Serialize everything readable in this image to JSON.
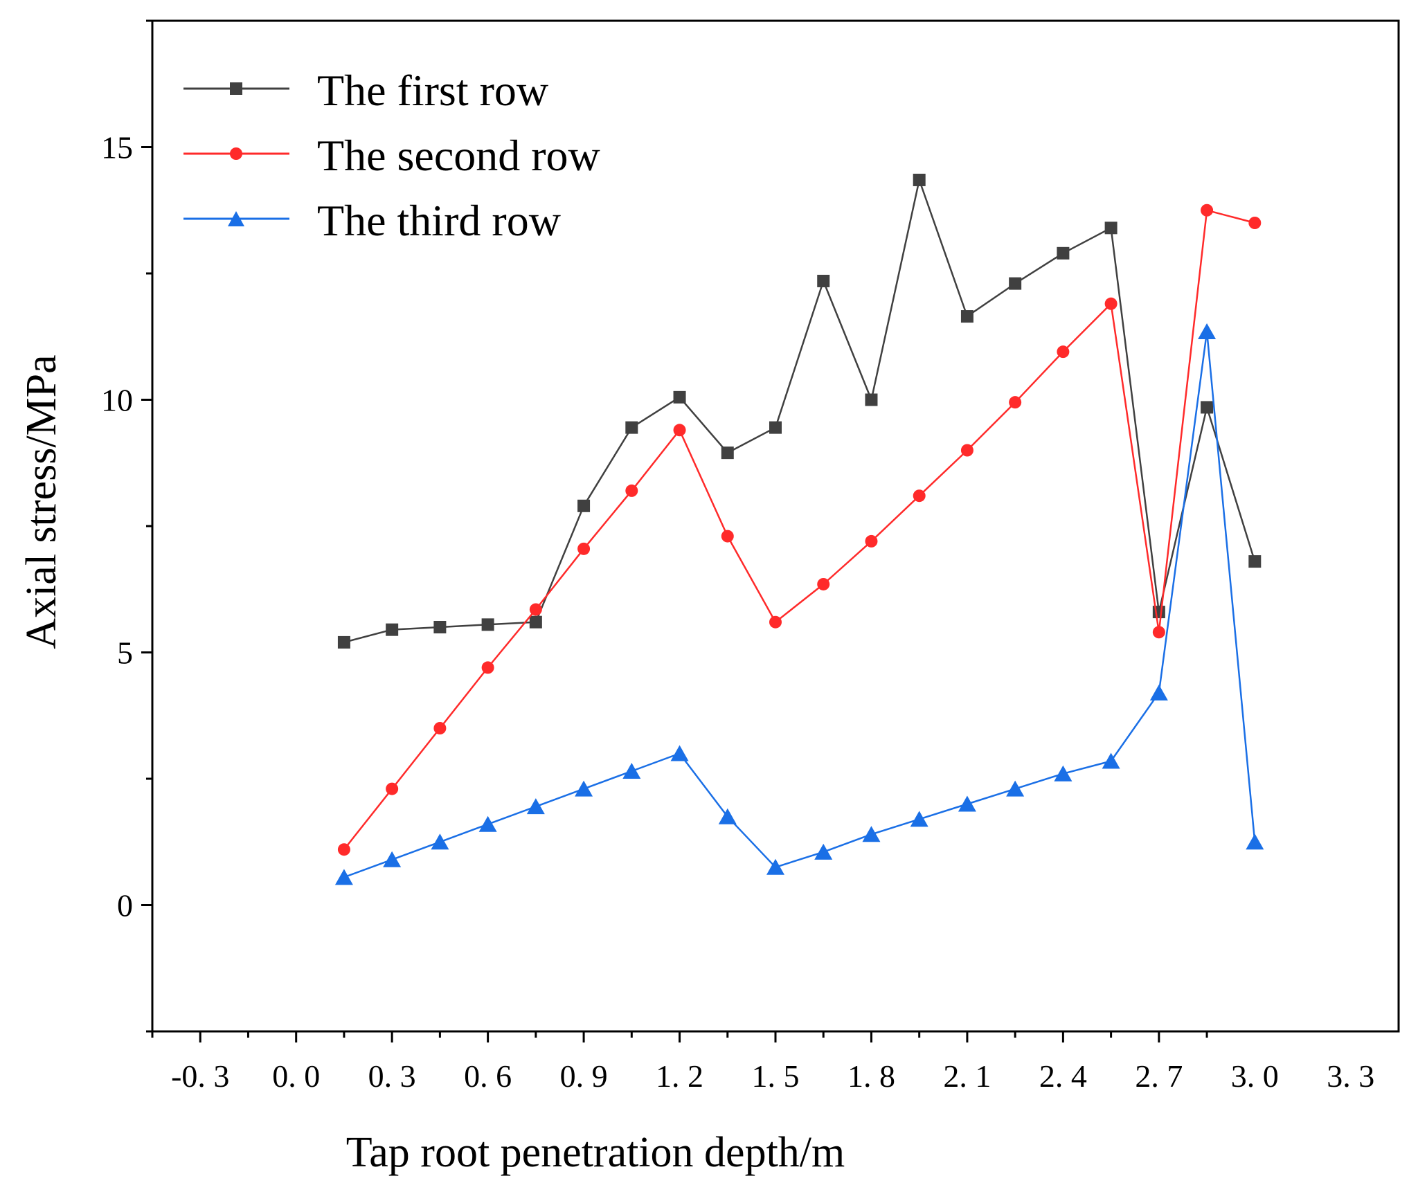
{
  "chart_data": {
    "type": "line",
    "xlabel": "Tap root penetration depth/m",
    "ylabel": "Axial stress/MPa",
    "xlim": [
      -0.45,
      3.45
    ],
    "ylim": [
      -2.5,
      17.5
    ],
    "x_ticks": [
      -0.3,
      0.0,
      0.3,
      0.6,
      0.9,
      1.2,
      1.5,
      1.8,
      2.1,
      2.4,
      2.7,
      3.0,
      3.3
    ],
    "x_tick_labels": [
      "-0. 3",
      "0. 0",
      "0. 3",
      "0. 6",
      "0. 9",
      "1. 2",
      "1. 5",
      "1. 8",
      "2. 1",
      "2. 4",
      "2. 7",
      "3. 0",
      "3. 3"
    ],
    "y_ticks": [
      0,
      5,
      10,
      15
    ],
    "y_tick_labels": [
      "0",
      "5",
      "10",
      "15"
    ],
    "legend_position": "top-left",
    "x": [
      0.15,
      0.3,
      0.45,
      0.6,
      0.75,
      0.9,
      1.05,
      1.2,
      1.35,
      1.5,
      1.65,
      1.8,
      1.95,
      2.1,
      2.25,
      2.4,
      2.55,
      2.7,
      2.85,
      3.0
    ],
    "series": [
      {
        "name": "The first row",
        "color": "#404040",
        "marker": "square",
        "values": [
          5.2,
          5.45,
          5.5,
          5.55,
          5.6,
          7.9,
          9.45,
          10.05,
          8.95,
          9.45,
          12.35,
          10.0,
          14.35,
          11.65,
          12.3,
          12.9,
          13.4,
          5.8,
          9.85,
          6.8
        ]
      },
      {
        "name": "The second row",
        "color": "#ff2a2a",
        "marker": "circle",
        "values": [
          1.1,
          2.3,
          3.5,
          4.7,
          5.85,
          7.05,
          8.2,
          9.4,
          7.3,
          5.6,
          6.35,
          7.2,
          8.1,
          9.0,
          9.95,
          10.95,
          11.9,
          5.4,
          13.75,
          13.5
        ]
      },
      {
        "name": "The third row",
        "color": "#1a6fe6",
        "marker": "triangle",
        "values": [
          0.55,
          0.9,
          1.25,
          1.6,
          1.95,
          2.3,
          2.65,
          3.0,
          1.75,
          0.75,
          1.05,
          1.4,
          1.7,
          2.0,
          2.3,
          2.6,
          2.85,
          4.2,
          11.35,
          1.25
        ]
      }
    ]
  }
}
